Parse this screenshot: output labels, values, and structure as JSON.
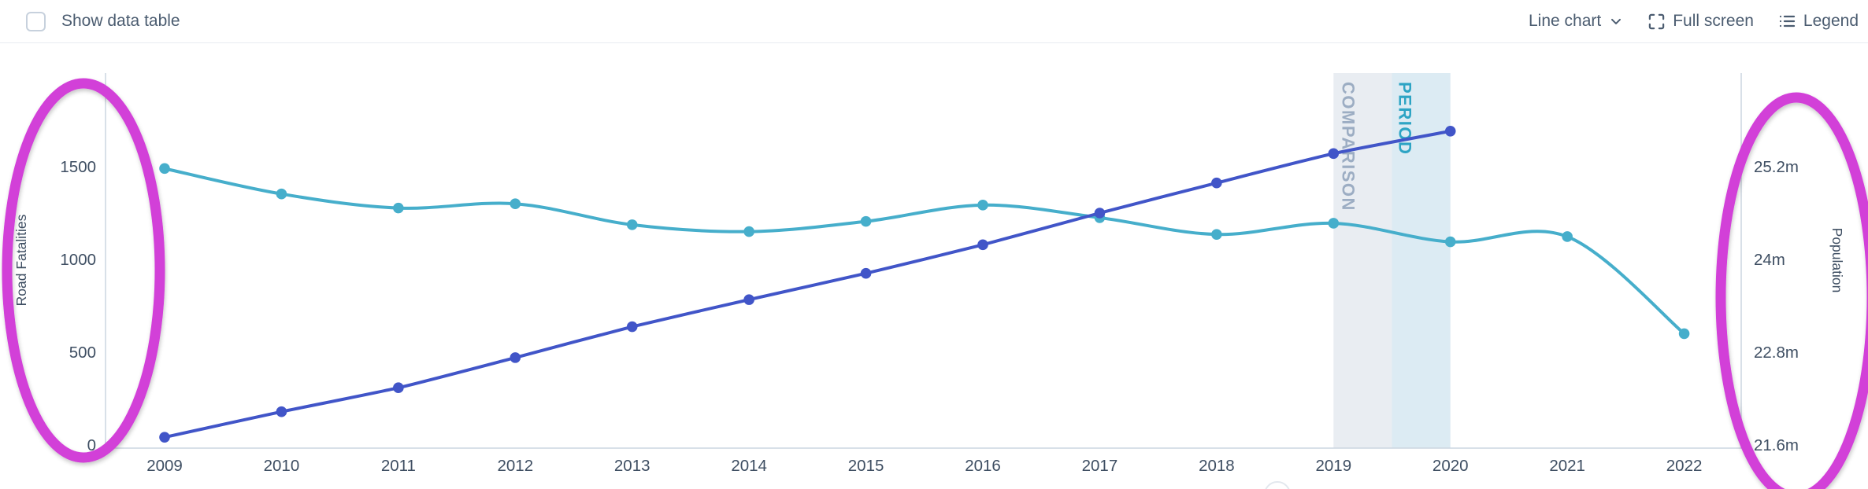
{
  "header": {
    "show_data_table_label": "Show data table",
    "chart_type_label": "Line chart",
    "full_screen_label": "Full screen",
    "legend_label": "Legend"
  },
  "chart_data": {
    "type": "line",
    "x": [
      2009,
      2010,
      2011,
      2012,
      2013,
      2014,
      2015,
      2016,
      2017,
      2018,
      2019,
      2020,
      2021,
      2022
    ],
    "series": [
      {
        "name": "Road Fatalities",
        "axis": "left",
        "color": "#46aecb",
        "values": [
          1490,
          1353,
          1277,
          1300,
          1187,
          1150,
          1205,
          1293,
          1225,
          1135,
          1195,
          1095,
          1123,
          600
        ]
      },
      {
        "name": "Population",
        "axis": "right",
        "color": "#4155c8",
        "values": [
          21.7,
          22.03,
          22.34,
          22.73,
          23.13,
          23.48,
          23.82,
          24.19,
          24.6,
          24.99,
          25.37,
          25.66,
          null,
          null
        ]
      }
    ],
    "left_axis": {
      "title": "Road Fatalities",
      "tick_labels": [
        "0",
        "500",
        "1000",
        "1500"
      ],
      "tick_values": [
        0,
        500,
        1000,
        1500
      ],
      "range": [
        0,
        2003
      ]
    },
    "right_axis": {
      "title": "Population",
      "tick_labels": [
        "21.6m",
        "22.8m",
        "24m",
        "25.2m"
      ],
      "tick_values": [
        21.6,
        22.8,
        24,
        25.2
      ],
      "range": [
        21.6,
        26.41
      ]
    },
    "xlabel": "",
    "ylabel": "Road Fatalities / Population",
    "grid": false,
    "legend_position": "none",
    "annotations": {
      "comparison_period": {
        "from": 2019,
        "to": 2020,
        "label_words": [
          "COMPARISON",
          "PERIOD"
        ],
        "band_colors": [
          "#e9edf2",
          "#dcebf3"
        ],
        "label_colors": [
          "#9cadc3",
          "#2da4c4"
        ]
      },
      "axis_highlight_ellipses": {
        "color": "#d23fd8",
        "targets": [
          "left-axis",
          "right-axis"
        ]
      }
    }
  },
  "colors": {
    "toolbar_text": "#4b5c70",
    "axis_text": "#3e4e62",
    "axis_line": "#ccd5e0",
    "series_teal": "#46aecb",
    "series_blue": "#4155c8",
    "annotation_magenta": "#d23fd8"
  }
}
